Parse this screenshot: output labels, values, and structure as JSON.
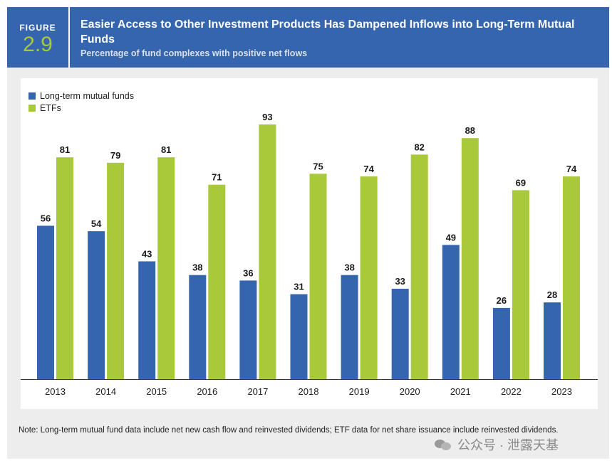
{
  "header": {
    "figure_label": "FIGURE",
    "figure_number": "2.9",
    "title": "Easier Access to Other Investment Products Has Dampened Inflows into Long-Term Mutual Funds",
    "subtitle": "Percentage of fund complexes with positive net flows"
  },
  "colors": {
    "header_bg": "#3565ae",
    "mutual_funds": "#3565ae",
    "etfs": "#a8c93a",
    "panel_bg": "#ededed"
  },
  "chart_data": {
    "type": "bar",
    "title": "Easier Access to Other Investment Products Has Dampened Inflows into Long-Term Mutual Funds",
    "subtitle": "Percentage of fund complexes with positive net flows",
    "categories": [
      "2013",
      "2014",
      "2015",
      "2016",
      "2017",
      "2018",
      "2019",
      "2020",
      "2021",
      "2022",
      "2023"
    ],
    "series": [
      {
        "name": "Long-term mutual funds",
        "color": "#3565ae",
        "values": [
          56,
          54,
          43,
          38,
          36,
          31,
          38,
          33,
          49,
          26,
          28
        ]
      },
      {
        "name": "ETFs",
        "color": "#a8c93a",
        "values": [
          81,
          79,
          81,
          71,
          93,
          75,
          74,
          82,
          88,
          69,
          74
        ]
      }
    ],
    "xlabel": "",
    "ylabel": "",
    "ylim": [
      0,
      100
    ],
    "grid": false,
    "legend_position": "top-left"
  },
  "note": "Note: Long-term mutual fund data include net new cash flow and reinvested dividends; ETF data for net share issuance include reinvested dividends.",
  "watermark": "公众号 · 泄露天基"
}
